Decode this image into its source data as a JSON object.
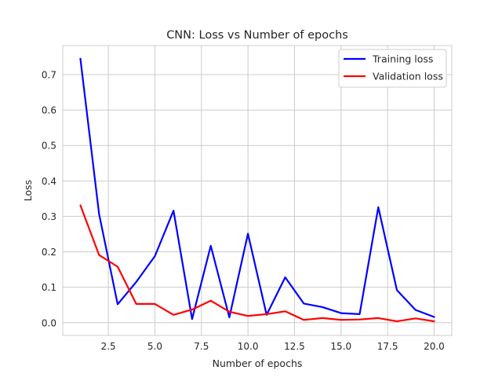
{
  "chart_data": {
    "type": "line",
    "title": "CNN: Loss vs Number of epochs",
    "xlabel": "Number of epochs",
    "ylabel": "Loss",
    "xlim": [
      0.05,
      20.95
    ],
    "ylim": [
      -0.036,
      0.782
    ],
    "xticks": [
      2.5,
      5.0,
      7.5,
      10.0,
      12.5,
      15.0,
      17.5,
      20.0
    ],
    "xtick_labels": [
      "2.5",
      "5.0",
      "7.5",
      "10.0",
      "12.5",
      "15.0",
      "17.5",
      "20.0"
    ],
    "yticks": [
      0.0,
      0.1,
      0.2,
      0.3,
      0.4,
      0.5,
      0.6,
      0.7
    ],
    "ytick_labels": [
      "0.0",
      "0.1",
      "0.2",
      "0.3",
      "0.4",
      "0.5",
      "0.6",
      "0.7"
    ],
    "grid": true,
    "legend_position": "top-right",
    "x": [
      1,
      2,
      3,
      4,
      5,
      6,
      7,
      8,
      9,
      10,
      11,
      12,
      13,
      14,
      15,
      16,
      17,
      18,
      19,
      20
    ],
    "series": [
      {
        "name": "Training loss",
        "color": "#0000ff",
        "values": [
          0.745,
          0.307,
          0.052,
          0.115,
          0.188,
          0.316,
          0.01,
          0.217,
          0.015,
          0.251,
          0.022,
          0.128,
          0.054,
          0.044,
          0.027,
          0.024,
          0.326,
          0.092,
          0.036,
          0.016
        ]
      },
      {
        "name": "Validation loss",
        "color": "#ff0000",
        "values": [
          0.331,
          0.191,
          0.158,
          0.053,
          0.053,
          0.022,
          0.037,
          0.062,
          0.031,
          0.019,
          0.024,
          0.032,
          0.008,
          0.013,
          0.008,
          0.009,
          0.013,
          0.004,
          0.012,
          0.004
        ]
      }
    ]
  }
}
